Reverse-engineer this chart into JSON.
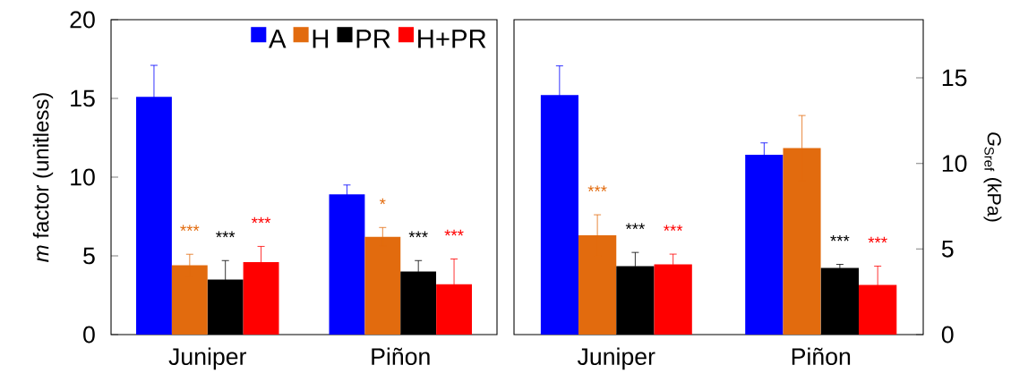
{
  "chart_data": [
    {
      "type": "bar",
      "categories": [
        "Juniper",
        "Piñon"
      ],
      "ylabel": "*m* factor (unitless)",
      "ylim": [
        0,
        20
      ],
      "yticks": [
        0,
        5,
        10,
        15,
        20
      ],
      "legend": "top right",
      "series": [
        {
          "name": "A",
          "color": "#0000ff",
          "values": [
            15.1,
            8.9
          ],
          "errors": [
            2.0,
            0.6
          ]
        },
        {
          "name": "H",
          "color": "#e26b0e",
          "values": [
            4.4,
            6.2
          ],
          "errors": [
            0.7,
            0.6
          ],
          "value_labels": [
            "***",
            "*"
          ]
        },
        {
          "name": "PR",
          "color": "#000000",
          "values": [
            3.5,
            4.0
          ],
          "errors": [
            1.2,
            0.7
          ],
          "value_labels": [
            "***",
            "***"
          ]
        },
        {
          "name": "H+PR",
          "color": "#ff0000",
          "values": [
            4.6,
            3.2
          ],
          "errors": [
            1.0,
            1.6
          ],
          "value_labels": [
            "***",
            "***"
          ]
        }
      ]
    },
    {
      "type": "bar",
      "categories": [
        "Juniper",
        "Piñon"
      ],
      "ylabel": "*G*$_{Sref}$ (kPa)",
      "ylim": [
        0,
        18.4
      ],
      "yticks": [
        0,
        5,
        10,
        15
      ],
      "series": [
        {
          "color": "#0000ff",
          "values": [
            14.0,
            10.5
          ],
          "errors": [
            1.7,
            0.7
          ]
        },
        {
          "color": "#e26b0e",
          "values": [
            5.8,
            10.9
          ],
          "errors": [
            1.2,
            1.9
          ],
          "value_labels": [
            "***",
            null
          ]
        },
        {
          "color": "#000000",
          "values": [
            4.0,
            3.9
          ],
          "errors": [
            0.8,
            0.2
          ],
          "value_labels": [
            "***",
            "***"
          ]
        },
        {
          "color": "#ff0000",
          "values": [
            4.1,
            2.9
          ],
          "errors": [
            0.6,
            1.1
          ],
          "value_labels": [
            "***",
            "***"
          ]
        }
      ]
    }
  ]
}
